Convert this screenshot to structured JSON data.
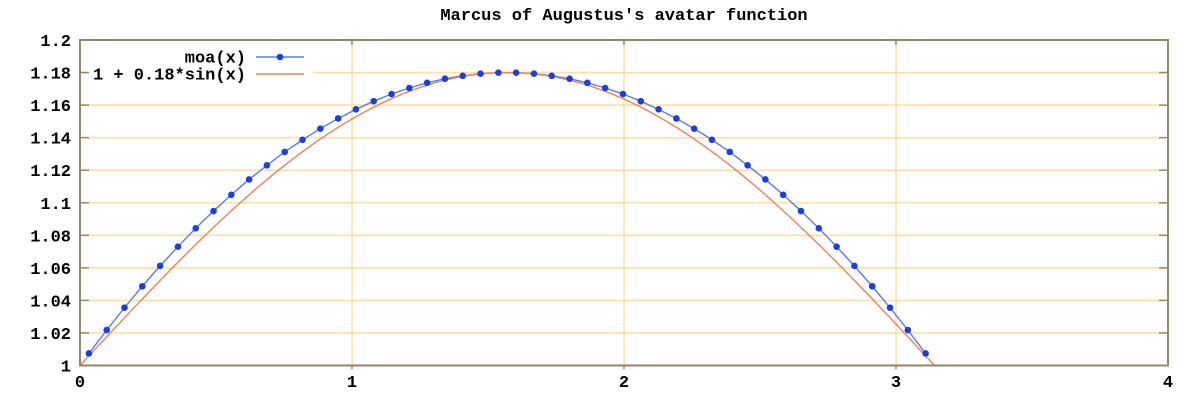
{
  "chart_data": {
    "type": "line",
    "title": "Marcus of Augustus's avatar function",
    "xlabel": "",
    "ylabel": "",
    "xlim": [
      0,
      4
    ],
    "ylim": [
      1,
      1.2
    ],
    "xticks": {
      "values": [
        0,
        1,
        2,
        3,
        4
      ],
      "labels": [
        "0",
        "1",
        "2",
        "3",
        "4"
      ]
    },
    "yticks": {
      "values": [
        1,
        1.02,
        1.04,
        1.06,
        1.08,
        1.1,
        1.12,
        1.14,
        1.16,
        1.18,
        1.2
      ],
      "labels": [
        "1",
        "1.02",
        "1.04",
        "1.06",
        "1.08",
        "1.1",
        "1.12",
        "1.14",
        "1.16",
        "1.18",
        "1.2"
      ]
    },
    "grid": true,
    "legend_position": "top-left-inside",
    "colors": {
      "background": "#ffffff",
      "border": "#94876a",
      "grid": "#ffdfa8",
      "text": "#000000"
    },
    "series": [
      {
        "name": "moa(x)",
        "style": "linespoints",
        "marker": "filled-circle",
        "point_color": "#1e3fd2",
        "line_color": "#5b7ce6",
        "x": [
          0.0327,
          0.0982,
          0.1636,
          0.2291,
          0.2945,
          0.36,
          0.4254,
          0.4909,
          0.5563,
          0.6218,
          0.6872,
          0.7527,
          0.8181,
          0.8836,
          0.949,
          1.0145,
          1.0799,
          1.1454,
          1.2108,
          1.2763,
          1.3417,
          1.4072,
          1.4726,
          1.5381,
          1.6035,
          1.669,
          1.7344,
          1.7999,
          1.8653,
          1.9308,
          1.9962,
          2.0617,
          2.1271,
          2.1926,
          2.258,
          2.3235,
          2.3889,
          2.4544,
          2.5198,
          2.5853,
          2.6507,
          2.7162,
          2.7816,
          2.8471,
          2.9125,
          2.978,
          3.0434,
          3.1089
        ],
        "y": [
          1.0074,
          1.0218,
          1.0355,
          1.0487,
          1.0612,
          1.073,
          1.0843,
          1.0949,
          1.1049,
          1.1143,
          1.123,
          1.1312,
          1.1387,
          1.1455,
          1.1518,
          1.1574,
          1.1624,
          1.1668,
          1.1705,
          1.1737,
          1.1762,
          1.178,
          1.1793,
          1.1799,
          1.1799,
          1.1793,
          1.178,
          1.1762,
          1.1737,
          1.1705,
          1.1668,
          1.1624,
          1.1574,
          1.1518,
          1.1455,
          1.1387,
          1.1312,
          1.123,
          1.1143,
          1.1049,
          1.0949,
          1.0843,
          1.073,
          1.0612,
          1.0487,
          1.0355,
          1.0218,
          1.0074
        ]
      },
      {
        "name": "1 + 0.18*sin(x)",
        "style": "lines",
        "line_color": "#e9845c",
        "formula": {
          "offset": 1,
          "amplitude": 0.18,
          "fn": "sin"
        },
        "domain": [
          0,
          3.14159265
        ]
      }
    ]
  }
}
